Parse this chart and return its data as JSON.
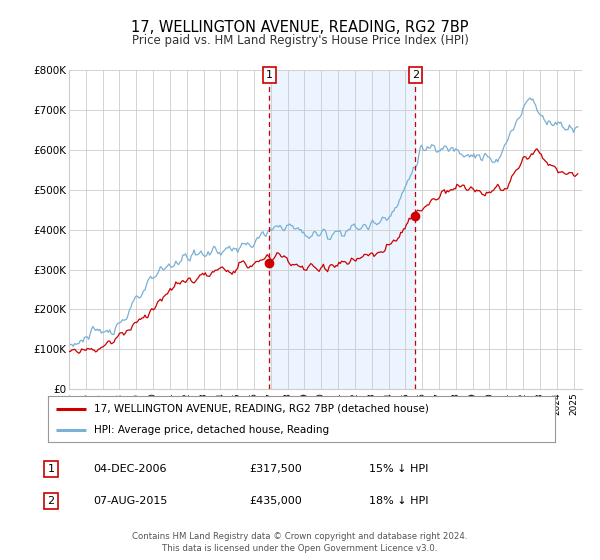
{
  "title": "17, WELLINGTON AVENUE, READING, RG2 7BP",
  "subtitle": "Price paid vs. HM Land Registry's House Price Index (HPI)",
  "title_fontsize": 10.5,
  "subtitle_fontsize": 8.5,
  "background_color": "#ffffff",
  "hpi_color": "#7ab0d4",
  "price_color": "#cc0000",
  "ylim": [
    0,
    800000
  ],
  "yticks": [
    0,
    100000,
    200000,
    300000,
    400000,
    500000,
    600000,
    700000,
    800000
  ],
  "ytick_labels": [
    "£0",
    "£100K",
    "£200K",
    "£300K",
    "£400K",
    "£500K",
    "£600K",
    "£700K",
    "£800K"
  ],
  "xlim_start": 1995.0,
  "xlim_end": 2025.5,
  "xtick_years": [
    1995,
    1996,
    1997,
    1998,
    1999,
    2000,
    2001,
    2002,
    2003,
    2004,
    2005,
    2006,
    2007,
    2008,
    2009,
    2010,
    2011,
    2012,
    2013,
    2014,
    2015,
    2016,
    2017,
    2018,
    2019,
    2020,
    2021,
    2022,
    2023,
    2024,
    2025
  ],
  "purchase1_x": 2006.92,
  "purchase1_y": 317500,
  "purchase2_x": 2015.6,
  "purchase2_y": 435000,
  "vline1_x": 2006.92,
  "vline2_x": 2015.6,
  "legend_price_label": "17, WELLINGTON AVENUE, READING, RG2 7BP (detached house)",
  "legend_hpi_label": "HPI: Average price, detached house, Reading",
  "table_entries": [
    {
      "num": "1",
      "date": "04-DEC-2006",
      "price": "£317,500",
      "hpi": "15% ↓ HPI"
    },
    {
      "num": "2",
      "date": "07-AUG-2015",
      "price": "£435,000",
      "hpi": "18% ↓ HPI"
    }
  ],
  "footer_text": "Contains HM Land Registry data © Crown copyright and database right 2024.\nThis data is licensed under the Open Government Licence v3.0.",
  "grid_color": "#cccccc",
  "shade_color": "#ddeeff"
}
